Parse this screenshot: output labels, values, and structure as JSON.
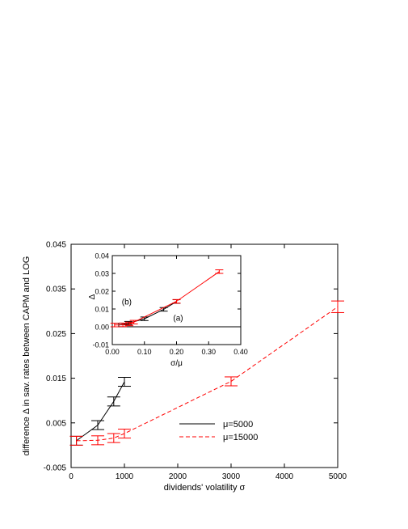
{
  "chart_data": {
    "type": "line",
    "xlabel": "dividends' volatility σ",
    "ylabel": "difference Δ  in sav. rates between CAPM and LOG",
    "xlim": [
      0,
      5000
    ],
    "ylim": [
      -0.005,
      0.045
    ],
    "xticks": [
      0,
      1000,
      2000,
      3000,
      4000,
      5000
    ],
    "xtick_labels": [
      "0",
      "1000",
      "2000",
      "3000",
      "4000",
      "5000"
    ],
    "yticks": [
      -0.005,
      0.005,
      0.015,
      0.025,
      0.035,
      0.045
    ],
    "ytick_labels": [
      "-0.005",
      "0.005",
      "0.015",
      "0.025",
      "0.035",
      "0.045"
    ],
    "legend_position": "lower-right",
    "series": [
      {
        "name": "μ=5000",
        "color": "#000000",
        "style": "solid",
        "points": [
          {
            "x": 100,
            "y": 0.001,
            "err": 0.001
          },
          {
            "x": 500,
            "y": 0.0045,
            "err": 0.001
          },
          {
            "x": 800,
            "y": 0.0098,
            "err": 0.001
          },
          {
            "x": 1000,
            "y": 0.0142,
            "err": 0.001
          }
        ]
      },
      {
        "name": "μ=15000",
        "color": "#ff0000",
        "style": "dashed",
        "points": [
          {
            "x": 100,
            "y": 0.001,
            "err": 0.001
          },
          {
            "x": 500,
            "y": 0.0011,
            "err": 0.001
          },
          {
            "x": 800,
            "y": 0.0016,
            "err": 0.001
          },
          {
            "x": 1000,
            "y": 0.0026,
            "err": 0.001
          },
          {
            "x": 3000,
            "y": 0.0143,
            "err": 0.001
          },
          {
            "x": 5000,
            "y": 0.031,
            "err": 0.0013
          }
        ]
      }
    ],
    "inset": {
      "type": "line",
      "xlabel": "σ/μ",
      "ylabel": "Δ",
      "xlim": [
        0,
        0.4
      ],
      "ylim": [
        -0.01,
        0.04
      ],
      "xticks": [
        0,
        0.1,
        0.2,
        0.3,
        0.4
      ],
      "xtick_labels": [
        "0.00",
        "0.10",
        "0.20",
        "0.30",
        "0.40"
      ],
      "yticks": [
        -0.01,
        0,
        0.01,
        0.02,
        0.03,
        0.04
      ],
      "ytick_labels": [
        "-0.01",
        "0.00",
        "0.01",
        "0.02",
        "0.03",
        "0.04"
      ],
      "zero_line": true,
      "annotations": [
        {
          "text": "(b)",
          "x": 0.045,
          "y": 0.0125
        },
        {
          "text": "(a)",
          "x": 0.205,
          "y": 0.0035
        }
      ],
      "series": [
        {
          "color": "#000000",
          "style": "solid",
          "points": [
            {
              "x": 0.02,
              "y": 0.001,
              "err": 0.001
            },
            {
              "x": 0.05,
              "y": 0.002,
              "err": 0.001
            },
            {
              "x": 0.1,
              "y": 0.0045,
              "err": 0.001
            },
            {
              "x": 0.16,
              "y": 0.0098,
              "err": 0.001
            },
            {
              "x": 0.2,
              "y": 0.0142,
              "err": 0.001
            }
          ]
        },
        {
          "color": "#ff0000",
          "style": "solid",
          "points": [
            {
              "x": 0.007,
              "y": 0.001,
              "err": 0.001
            },
            {
              "x": 0.033,
              "y": 0.0011,
              "err": 0.001
            },
            {
              "x": 0.053,
              "y": 0.0016,
              "err": 0.001
            },
            {
              "x": 0.067,
              "y": 0.0026,
              "err": 0.001
            },
            {
              "x": 0.2,
              "y": 0.0143,
              "err": 0.001
            },
            {
              "x": 0.333,
              "y": 0.031,
              "err": 0.001
            }
          ]
        }
      ]
    }
  }
}
